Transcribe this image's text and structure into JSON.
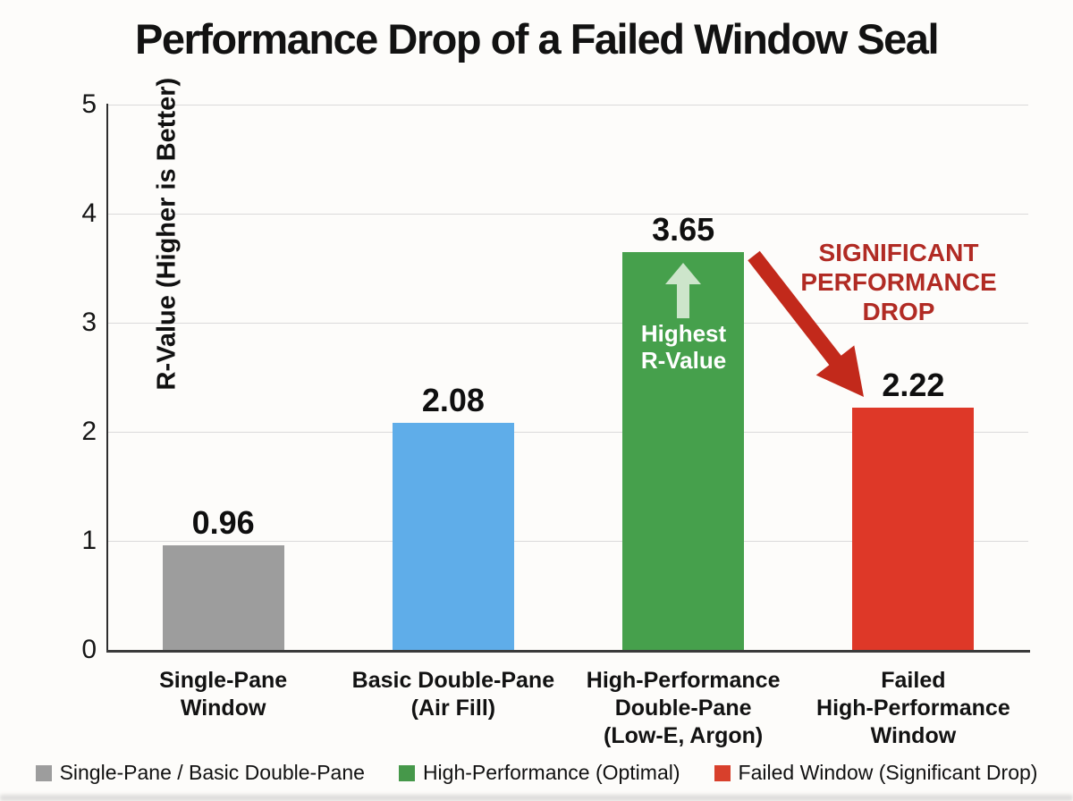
{
  "title": "Performance Drop of a Failed Window Seal",
  "chart_data": {
    "type": "bar",
    "title": "Performance Drop of a Failed Window Seal",
    "categories": [
      "Single-Pane\nWindow",
      "Basic Double-Pane\n(Air Fill)",
      "High-Performance\nDouble-Pane\n(Low-E, Argon)",
      "Failed\nHigh-Performance\nWindow"
    ],
    "values": [
      0.96,
      2.08,
      3.65,
      2.22
    ],
    "value_labels": [
      "0.96",
      "2.08",
      "3.65",
      "2.22"
    ],
    "bar_colors": [
      "#9d9d9d",
      "#5fade9",
      "#46a04c",
      "#de3828"
    ],
    "xlabel": "",
    "ylabel": "R-Value (Higher is Better)",
    "ylim": [
      0,
      5
    ],
    "yticks": [
      0,
      1,
      2,
      3,
      4,
      5
    ],
    "grid": true,
    "legend_position": "bottom"
  },
  "annotations": {
    "highest_r_value": {
      "text": "Highest\nR-Value",
      "arrow": "up",
      "text_color": "#ffffff",
      "arrow_color": "#d9ead6"
    },
    "performance_drop": {
      "text": "SIGNIFICANT\nPERFORMANCE\nDROP",
      "arrow": "diagonal-down",
      "text_color": "#b12b24",
      "arrow_color": "#c2291b"
    }
  },
  "legend": {
    "items": [
      {
        "label": "Single-Pane / Basic Double-Pane",
        "color": "#9d9d9d"
      },
      {
        "label": "High-Performance (Optimal)",
        "color": "#46984a"
      },
      {
        "label": "Failed Window (Significant Drop)",
        "color": "#d8402c"
      }
    ]
  }
}
